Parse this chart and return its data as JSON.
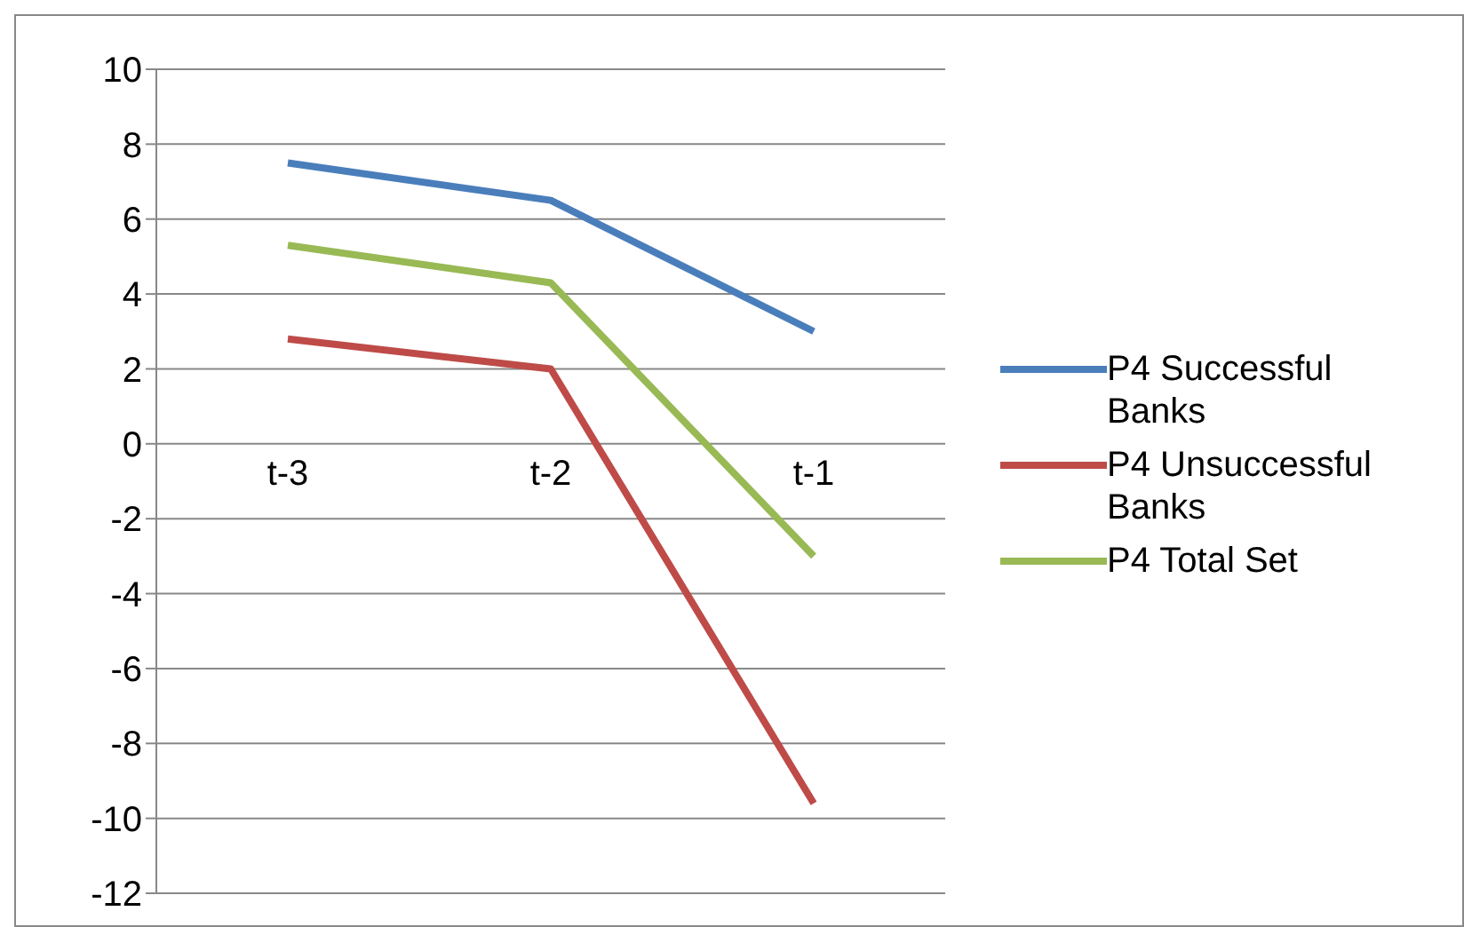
{
  "chart_data": {
    "type": "line",
    "categories": [
      "t-3",
      "t-2",
      "t-1"
    ],
    "series": [
      {
        "name": "P4 Successful Banks",
        "color": "#4a7ebb",
        "values": [
          7.5,
          6.5,
          3.0
        ]
      },
      {
        "name": "P4 Unsuccessful Banks",
        "color": "#be4b48",
        "values": [
          2.8,
          2.0,
          -9.6
        ]
      },
      {
        "name": "P4 Total Set",
        "color": "#98b954",
        "values": [
          5.3,
          4.3,
          -3.0
        ]
      }
    ],
    "ylim": [
      -12,
      10
    ],
    "yticks": [
      -12,
      -10,
      -8,
      -6,
      -4,
      -2,
      0,
      2,
      4,
      6,
      8,
      10
    ],
    "grid": "y",
    "legend": "right",
    "marker": "none",
    "line_style": "solid"
  }
}
